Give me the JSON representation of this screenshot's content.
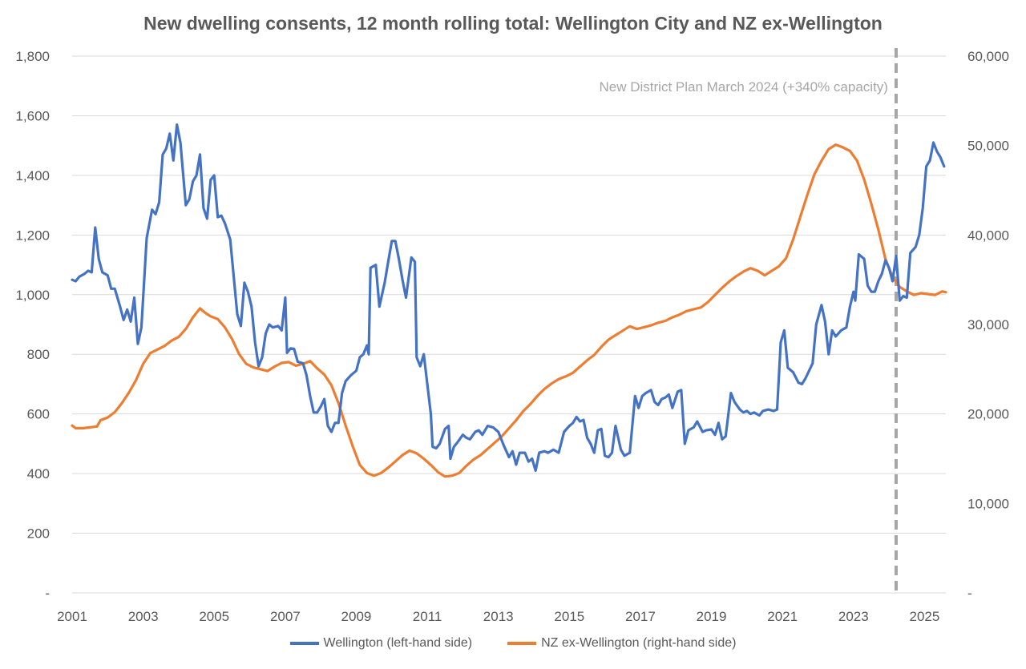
{
  "chart_data": {
    "type": "line",
    "title": "New dwelling consents, 12 month rolling total: Wellington City and NZ ex-Wellington",
    "x_ticks": [
      "2001",
      "2003",
      "2005",
      "2007",
      "2009",
      "2011",
      "2013",
      "2015",
      "2017",
      "2019",
      "2021",
      "2023",
      "2025"
    ],
    "x_range": [
      2001.0,
      2025.6
    ],
    "y_left": {
      "ticks": [
        "-",
        "200",
        "400",
        "600",
        "800",
        "1,000",
        "1,200",
        "1,400",
        "1,600",
        "1,800"
      ],
      "values": [
        0,
        200,
        400,
        600,
        800,
        1000,
        1200,
        1400,
        1600,
        1800
      ],
      "range": [
        0,
        1800
      ]
    },
    "y_right": {
      "ticks": [
        "-",
        "10,000",
        "20,000",
        "30,000",
        "40,000",
        "50,000",
        "60,000"
      ],
      "values": [
        0,
        10000,
        20000,
        30000,
        40000,
        50000,
        60000
      ],
      "range": [
        0,
        60000
      ]
    },
    "annotation": {
      "text": "New District Plan March 2024 (+340% capacity)",
      "x": 2024.2
    },
    "series": [
      {
        "name": "Wellington (left-hand side)",
        "axis": "left",
        "color": "#4472c4",
        "points": [
          [
            2001.0,
            1050
          ],
          [
            2001.1,
            1045
          ],
          [
            2001.2,
            1060
          ],
          [
            2001.3,
            1070
          ],
          [
            2001.45,
            1080
          ],
          [
            2001.55,
            1075
          ],
          [
            2001.65,
            1225
          ],
          [
            2001.75,
            1120
          ],
          [
            2001.85,
            1075
          ],
          [
            2002.0,
            1060
          ],
          [
            2002.1,
            1020
          ],
          [
            2002.2,
            1020
          ],
          [
            2002.35,
            960
          ],
          [
            2002.45,
            915
          ],
          [
            2002.55,
            950
          ],
          [
            2002.65,
            910
          ],
          [
            2002.75,
            990
          ],
          [
            2002.85,
            835
          ],
          [
            2002.95,
            890
          ],
          [
            2003.1,
            1190
          ],
          [
            2003.25,
            1285
          ],
          [
            2003.35,
            1270
          ],
          [
            2003.45,
            1310
          ],
          [
            2003.55,
            1470
          ],
          [
            2003.65,
            1490
          ],
          [
            2003.75,
            1540
          ],
          [
            2003.85,
            1450
          ],
          [
            2003.95,
            1570
          ],
          [
            2004.05,
            1510
          ],
          [
            2004.2,
            1300
          ],
          [
            2004.3,
            1320
          ],
          [
            2004.4,
            1380
          ],
          [
            2004.5,
            1400
          ],
          [
            2004.6,
            1470
          ],
          [
            2004.7,
            1290
          ],
          [
            2004.8,
            1255
          ],
          [
            2004.9,
            1385
          ],
          [
            2005.0,
            1400
          ],
          [
            2005.1,
            1260
          ],
          [
            2005.2,
            1265
          ],
          [
            2005.3,
            1240
          ],
          [
            2005.45,
            1185
          ],
          [
            2005.55,
            1060
          ],
          [
            2005.65,
            935
          ],
          [
            2005.75,
            895
          ],
          [
            2005.85,
            1040
          ],
          [
            2005.95,
            1010
          ],
          [
            2006.05,
            960
          ],
          [
            2006.15,
            840
          ],
          [
            2006.25,
            760
          ],
          [
            2006.35,
            790
          ],
          [
            2006.45,
            870
          ],
          [
            2006.55,
            900
          ],
          [
            2006.65,
            890
          ],
          [
            2006.8,
            895
          ],
          [
            2006.9,
            880
          ],
          [
            2007.0,
            990
          ],
          [
            2007.05,
            805
          ],
          [
            2007.15,
            820
          ],
          [
            2007.25,
            818
          ],
          [
            2007.35,
            775
          ],
          [
            2007.5,
            770
          ],
          [
            2007.6,
            730
          ],
          [
            2007.7,
            660
          ],
          [
            2007.8,
            605
          ],
          [
            2007.9,
            605
          ],
          [
            2008.0,
            625
          ],
          [
            2008.1,
            650
          ],
          [
            2008.2,
            560
          ],
          [
            2008.3,
            540
          ],
          [
            2008.4,
            570
          ],
          [
            2008.5,
            570
          ],
          [
            2008.6,
            670
          ],
          [
            2008.7,
            710
          ],
          [
            2008.85,
            730
          ],
          [
            2009.0,
            745
          ],
          [
            2009.1,
            790
          ],
          [
            2009.2,
            800
          ],
          [
            2009.3,
            830
          ],
          [
            2009.35,
            800
          ],
          [
            2009.4,
            1090
          ],
          [
            2009.55,
            1100
          ],
          [
            2009.65,
            960
          ],
          [
            2009.8,
            1040
          ],
          [
            2009.9,
            1110
          ],
          [
            2010.0,
            1180
          ],
          [
            2010.1,
            1180
          ],
          [
            2010.2,
            1120
          ],
          [
            2010.3,
            1050
          ],
          [
            2010.4,
            990
          ],
          [
            2010.55,
            1125
          ],
          [
            2010.65,
            1110
          ],
          [
            2010.7,
            790
          ],
          [
            2010.8,
            760
          ],
          [
            2010.9,
            800
          ],
          [
            2011.0,
            700
          ],
          [
            2011.1,
            600
          ],
          [
            2011.15,
            490
          ],
          [
            2011.25,
            485
          ],
          [
            2011.35,
            500
          ],
          [
            2011.5,
            550
          ],
          [
            2011.6,
            560
          ],
          [
            2011.65,
            450
          ],
          [
            2011.75,
            490
          ],
          [
            2011.85,
            505
          ],
          [
            2012.0,
            530
          ],
          [
            2012.1,
            520
          ],
          [
            2012.2,
            515
          ],
          [
            2012.35,
            540
          ],
          [
            2012.45,
            545
          ],
          [
            2012.55,
            530
          ],
          [
            2012.7,
            560
          ],
          [
            2012.85,
            555
          ],
          [
            2013.0,
            540
          ],
          [
            2013.15,
            495
          ],
          [
            2013.3,
            455
          ],
          [
            2013.4,
            475
          ],
          [
            2013.5,
            430
          ],
          [
            2013.6,
            470
          ],
          [
            2013.75,
            470
          ],
          [
            2013.85,
            440
          ],
          [
            2013.95,
            450
          ],
          [
            2014.05,
            410
          ],
          [
            2014.15,
            470
          ],
          [
            2014.3,
            475
          ],
          [
            2014.4,
            470
          ],
          [
            2014.55,
            480
          ],
          [
            2014.7,
            470
          ],
          [
            2014.85,
            540
          ],
          [
            2015.0,
            560
          ],
          [
            2015.1,
            570
          ],
          [
            2015.2,
            590
          ],
          [
            2015.3,
            575
          ],
          [
            2015.4,
            580
          ],
          [
            2015.5,
            520
          ],
          [
            2015.6,
            500
          ],
          [
            2015.7,
            470
          ],
          [
            2015.8,
            545
          ],
          [
            2015.9,
            550
          ],
          [
            2016.0,
            460
          ],
          [
            2016.1,
            455
          ],
          [
            2016.2,
            470
          ],
          [
            2016.3,
            560
          ],
          [
            2016.45,
            480
          ],
          [
            2016.55,
            460
          ],
          [
            2016.7,
            470
          ],
          [
            2016.85,
            660
          ],
          [
            2016.95,
            620
          ],
          [
            2017.05,
            660
          ],
          [
            2017.15,
            670
          ],
          [
            2017.3,
            680
          ],
          [
            2017.4,
            640
          ],
          [
            2017.5,
            630
          ],
          [
            2017.6,
            650
          ],
          [
            2017.7,
            655
          ],
          [
            2017.8,
            665
          ],
          [
            2017.9,
            620
          ],
          [
            2018.05,
            675
          ],
          [
            2018.15,
            680
          ],
          [
            2018.25,
            500
          ],
          [
            2018.35,
            545
          ],
          [
            2018.5,
            555
          ],
          [
            2018.6,
            575
          ],
          [
            2018.75,
            540
          ],
          [
            2018.85,
            545
          ],
          [
            2019.0,
            548
          ],
          [
            2019.1,
            530
          ],
          [
            2019.2,
            570
          ],
          [
            2019.3,
            515
          ],
          [
            2019.4,
            525
          ],
          [
            2019.55,
            670
          ],
          [
            2019.65,
            640
          ],
          [
            2019.8,
            615
          ],
          [
            2019.9,
            605
          ],
          [
            2020.0,
            610
          ],
          [
            2020.1,
            600
          ],
          [
            2020.2,
            605
          ],
          [
            2020.35,
            595
          ],
          [
            2020.45,
            610
          ],
          [
            2020.6,
            615
          ],
          [
            2020.75,
            610
          ],
          [
            2020.85,
            615
          ],
          [
            2020.95,
            840
          ],
          [
            2021.05,
            880
          ],
          [
            2021.15,
            755
          ],
          [
            2021.3,
            740
          ],
          [
            2021.45,
            705
          ],
          [
            2021.55,
            700
          ],
          [
            2021.65,
            720
          ],
          [
            2021.85,
            770
          ],
          [
            2021.95,
            900
          ],
          [
            2022.1,
            965
          ],
          [
            2022.2,
            910
          ],
          [
            2022.3,
            800
          ],
          [
            2022.4,
            880
          ],
          [
            2022.5,
            860
          ],
          [
            2022.65,
            880
          ],
          [
            2022.8,
            890
          ],
          [
            2022.9,
            960
          ],
          [
            2023.0,
            1010
          ],
          [
            2023.05,
            980
          ],
          [
            2023.15,
            1135
          ],
          [
            2023.3,
            1120
          ],
          [
            2023.4,
            1030
          ],
          [
            2023.5,
            1010
          ],
          [
            2023.6,
            1010
          ],
          [
            2023.7,
            1045
          ],
          [
            2023.8,
            1070
          ],
          [
            2023.9,
            1115
          ],
          [
            2024.0,
            1090
          ],
          [
            2024.1,
            1045
          ],
          [
            2024.2,
            1130
          ],
          [
            2024.3,
            980
          ],
          [
            2024.4,
            995
          ],
          [
            2024.5,
            990
          ],
          [
            2024.6,
            1140
          ],
          [
            2024.75,
            1160
          ],
          [
            2024.85,
            1200
          ],
          [
            2024.95,
            1290
          ],
          [
            2025.05,
            1430
          ],
          [
            2025.15,
            1450
          ],
          [
            2025.25,
            1510
          ],
          [
            2025.35,
            1480
          ],
          [
            2025.45,
            1460
          ],
          [
            2025.55,
            1430
          ]
        ]
      },
      {
        "name": "NZ ex-Wellington (right-hand side)",
        "axis": "right",
        "color": "#ed7d31",
        "points": []
      }
    ]
  },
  "legend": {
    "wellington": "Wellington (left-hand side)",
    "nz_ex_wellington": "NZ ex-Wellington (right-hand side)"
  }
}
